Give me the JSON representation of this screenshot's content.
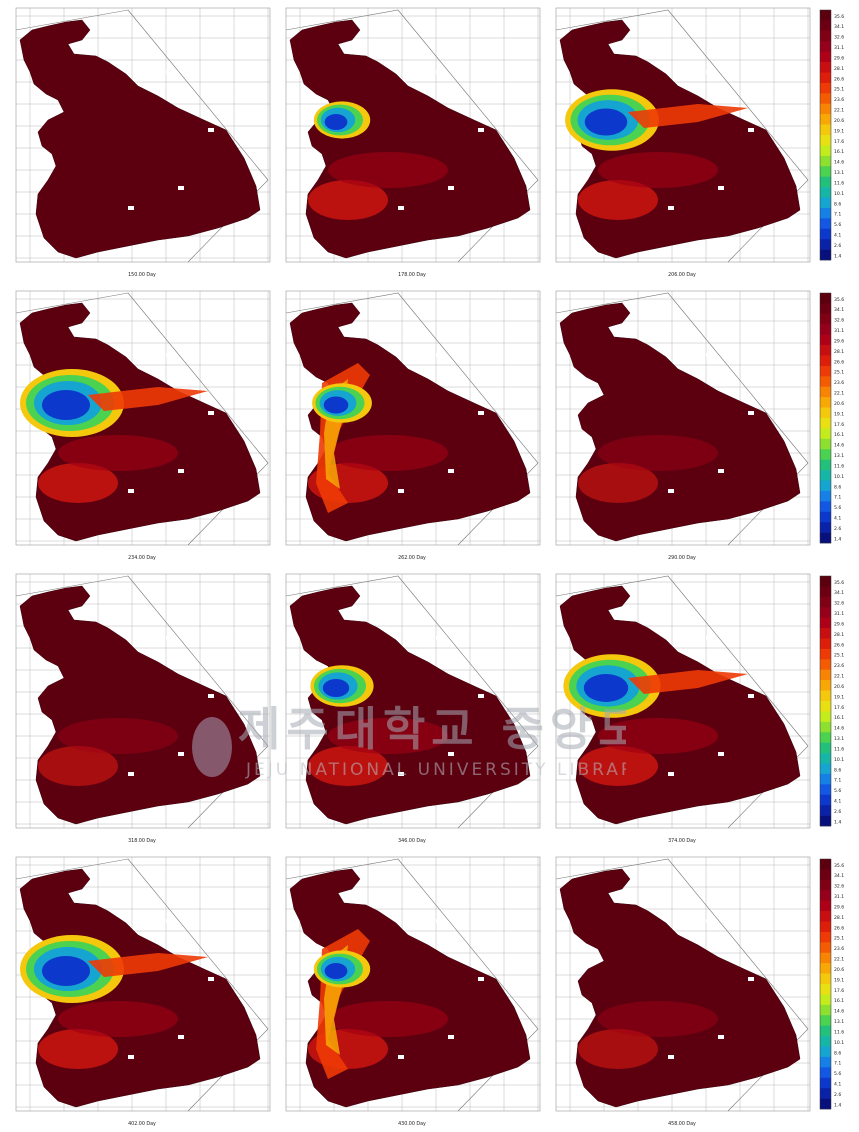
{
  "colorbar": {
    "labels": [
      "35.6",
      "34.1",
      "32.6",
      "31.1",
      "29.6",
      "28.1",
      "26.6",
      "25.1",
      "23.6",
      "22.1",
      "20.6",
      "19.1",
      "17.6",
      "16.1",
      "14.6",
      "13.1",
      "11.6",
      "10.1",
      "8.6",
      "7.1",
      "5.6",
      "4.1",
      "2.6",
      "1.4"
    ],
    "colors": [
      "#5c0010",
      "#6c0012",
      "#800014",
      "#96001a",
      "#ae0016",
      "#c70e10",
      "#dc1e0a",
      "#ee3a06",
      "#f45c04",
      "#f78404",
      "#f8a806",
      "#f4c80c",
      "#e8e012",
      "#c4ec1c",
      "#8ee030",
      "#4ad250",
      "#22c07a",
      "#16b6a6",
      "#16a4d0",
      "#1680e6",
      "#1258e2",
      "#0c38cc",
      "#0a22a8",
      "#08107c"
    ]
  },
  "panels": [
    {
      "caption": "150.00 Day",
      "blob": 0.02,
      "ring": "none"
    },
    {
      "caption": "178.00 Day",
      "blob": 0.3,
      "ring": "small"
    },
    {
      "caption": "206.00 Day",
      "blob": 0.85,
      "ring": "large"
    },
    {
      "caption": "234.00 Day",
      "blob": 1.0,
      "ring": "large"
    },
    {
      "caption": "262.00 Day",
      "blob": 0.35,
      "ring": "warm"
    },
    {
      "caption": "290.00 Day",
      "blob": 0.0,
      "ring": "faint"
    },
    {
      "caption": "318.00 Day",
      "blob": 0.05,
      "ring": "faint"
    },
    {
      "caption": "346.00 Day",
      "blob": 0.4,
      "ring": "small"
    },
    {
      "caption": "374.00 Day",
      "blob": 0.9,
      "ring": "large"
    },
    {
      "caption": "402.00 Day",
      "blob": 1.0,
      "ring": "large"
    },
    {
      "caption": "430.00 Day",
      "blob": 0.3,
      "ring": "warm"
    },
    {
      "caption": "458.00 Day",
      "blob": 0.0,
      "ring": "faint"
    }
  ],
  "watermark": {
    "main": "제주대학교 중앙도서관",
    "sub": "JEJU NATIONAL UNIVERSITY LIBRARY"
  }
}
